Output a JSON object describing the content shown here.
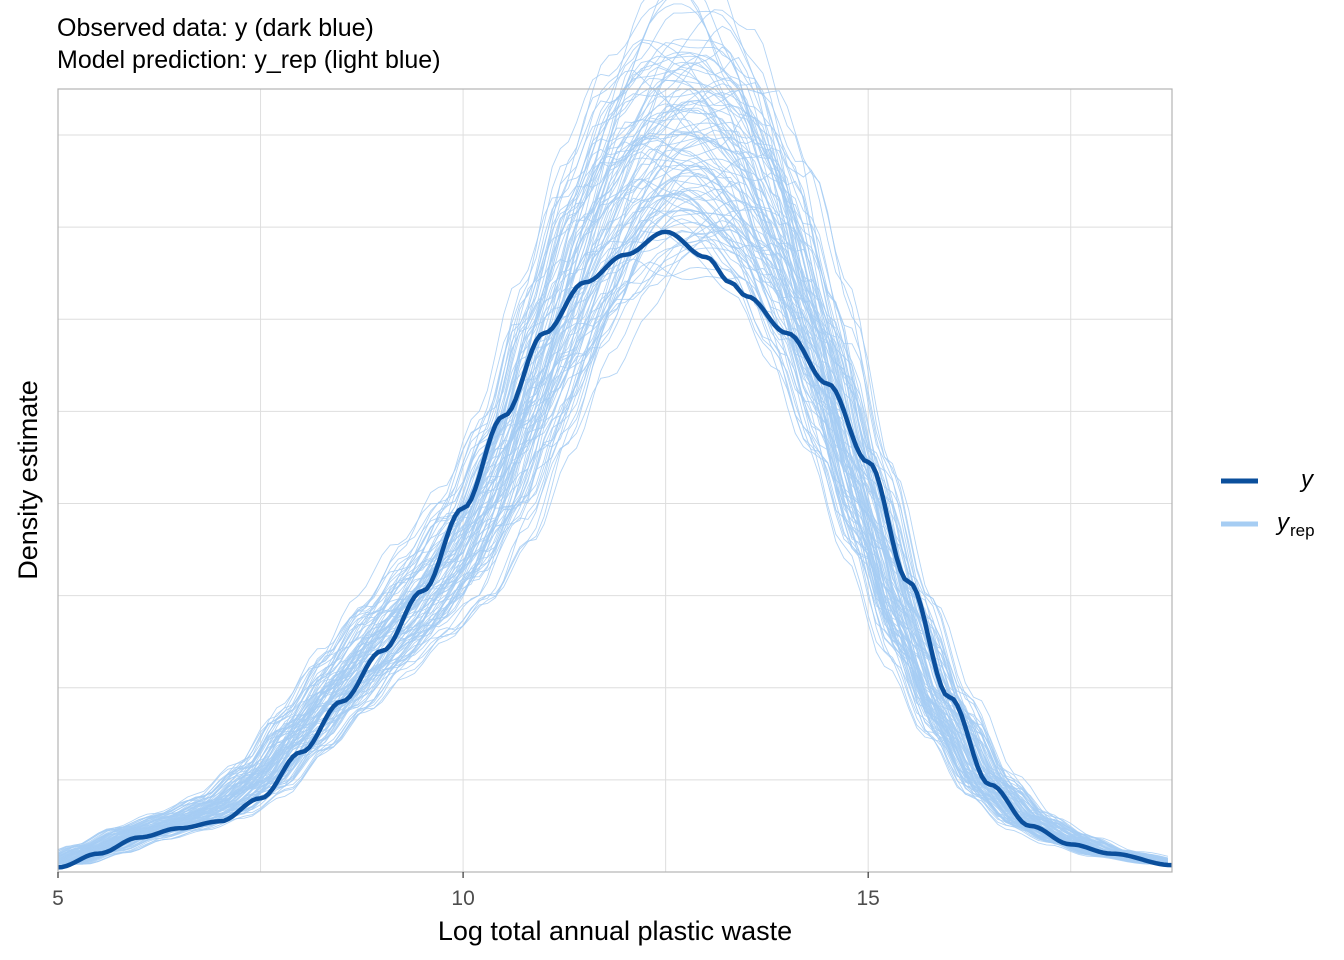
{
  "chart_data": {
    "type": "line",
    "title_lines": [
      "Observed data: y (dark blue)",
      "Model prediction: y_rep (light blue)"
    ],
    "xlabel": "Log total annual plastic waste",
    "ylabel": "Density estimate",
    "xlim": [
      5,
      18.75
    ],
    "ylim": [
      0,
      0.17
    ],
    "x_ticks": [
      5,
      10,
      15
    ],
    "x_tick_labels": [
      "5",
      "10",
      "15"
    ],
    "y_tick_labels_shown": false,
    "grid": true,
    "legend": {
      "position": "right",
      "entries": [
        {
          "label": "y",
          "sub": "",
          "color": "#0b4f9c"
        },
        {
          "label": "y",
          "sub": "rep",
          "color": "#a6cdf3"
        }
      ]
    },
    "colors": {
      "observed": "#0b4f9c",
      "replicated": "#a6cdf3",
      "grid": "#dedede",
      "panel_border": "#b3b3b3"
    },
    "replicate_draws_count": 100,
    "series": [
      {
        "name": "y",
        "x": [
          5.0,
          5.5,
          6.0,
          6.5,
          7.0,
          7.5,
          8.0,
          8.5,
          9.0,
          9.5,
          10.0,
          10.5,
          11.0,
          11.5,
          12.0,
          12.5,
          13.0,
          13.3,
          13.5,
          14.0,
          14.5,
          15.0,
          15.5,
          16.0,
          16.5,
          17.0,
          17.5,
          18.0,
          18.75
        ],
        "values": [
          0.001,
          0.004,
          0.0075,
          0.0095,
          0.011,
          0.016,
          0.026,
          0.037,
          0.048,
          0.061,
          0.079,
          0.099,
          0.117,
          0.128,
          0.134,
          0.139,
          0.1335,
          0.128,
          0.125,
          0.117,
          0.106,
          0.089,
          0.063,
          0.038,
          0.019,
          0.01,
          0.006,
          0.004,
          0.0015
        ]
      },
      {
        "name": "y_rep",
        "x": [
          5.0,
          5.5,
          6.0,
          6.5,
          7.0,
          7.5,
          8.0,
          8.5,
          9.0,
          9.5,
          10.0,
          10.5,
          11.0,
          11.5,
          12.0,
          12.5,
          13.0,
          13.5,
          14.0,
          14.5,
          15.0,
          15.5,
          16.0,
          16.5,
          17.0,
          17.5,
          18.0,
          18.75
        ],
        "values": [
          0.002,
          0.005,
          0.0085,
          0.011,
          0.014,
          0.02,
          0.03,
          0.04,
          0.05,
          0.059,
          0.07,
          0.087,
          0.11,
          0.131,
          0.148,
          0.157,
          0.158,
          0.151,
          0.133,
          0.108,
          0.08,
          0.054,
          0.034,
          0.019,
          0.011,
          0.007,
          0.004,
          0.002
        ]
      }
    ]
  }
}
